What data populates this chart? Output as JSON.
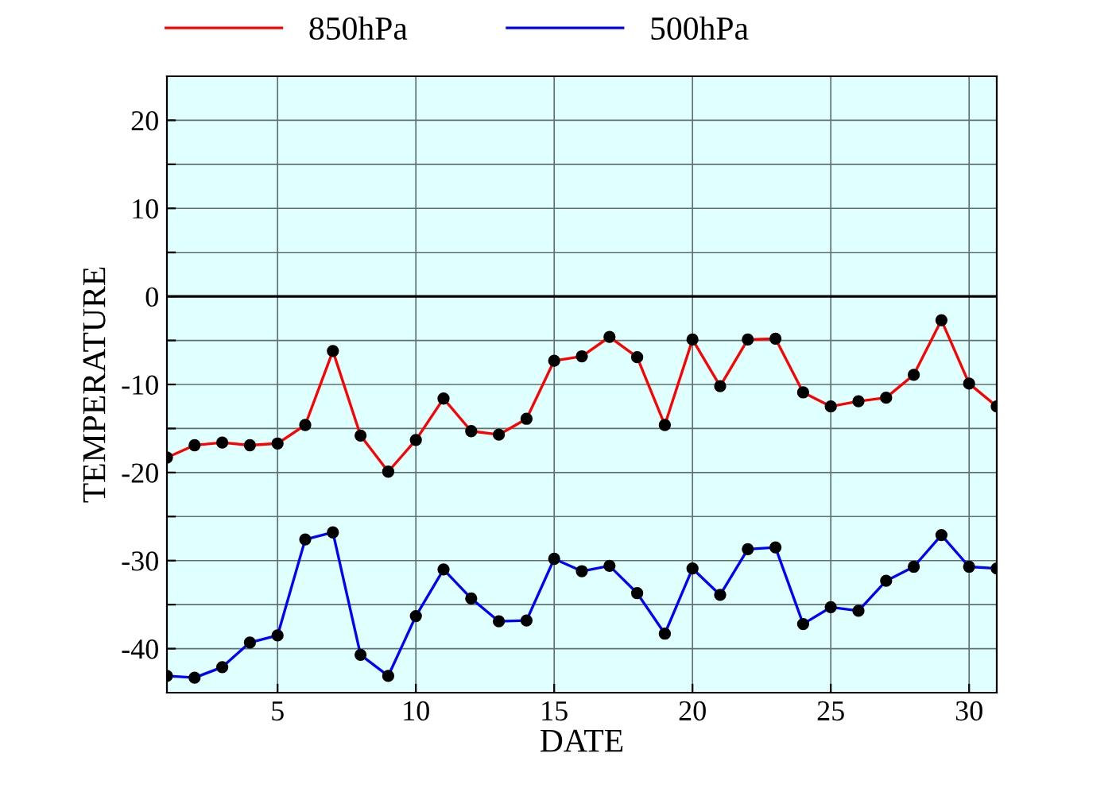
{
  "chart_data": {
    "type": "line",
    "xlabel": "DATE",
    "ylabel": "TEMPERATURE",
    "x": [
      1,
      2,
      3,
      4,
      5,
      6,
      7,
      8,
      9,
      10,
      11,
      12,
      13,
      14,
      15,
      16,
      17,
      18,
      19,
      20,
      21,
      22,
      23,
      24,
      25,
      26,
      27,
      28,
      29,
      30,
      31
    ],
    "series": [
      {
        "name": "850hPa",
        "color": "#ff0000",
        "values": [
          -18.3,
          -16.9,
          -16.6,
          -16.9,
          -16.7,
          -14.6,
          -6.2,
          -15.8,
          -19.9,
          -16.3,
          -11.6,
          -15.3,
          -15.7,
          -13.9,
          -7.3,
          -6.8,
          -4.6,
          -6.9,
          -14.6,
          -4.9,
          -10.2,
          -4.9,
          -4.8,
          -10.9,
          -12.5,
          -11.9,
          -11.5,
          -8.9,
          -2.7,
          -9.9,
          -12.5
        ]
      },
      {
        "name": "500hPa",
        "color": "#0000ff",
        "values": [
          -43.1,
          -43.3,
          -42.1,
          -39.3,
          -38.5,
          -27.6,
          -26.8,
          -40.7,
          -43.1,
          -36.3,
          -31.0,
          -34.3,
          -36.9,
          -36.8,
          -29.8,
          -31.2,
          -30.6,
          -33.7,
          -38.3,
          -30.9,
          -33.9,
          -28.7,
          -28.5,
          -37.2,
          -35.3,
          -35.7,
          -32.3,
          -30.7,
          -27.1,
          -30.7,
          -30.9
        ]
      }
    ],
    "xlim": [
      1,
      31
    ],
    "xticks": [
      5,
      10,
      15,
      20,
      25,
      30
    ],
    "ylim": [
      -45,
      25
    ],
    "yticks": [
      {
        "value": -40,
        "label": "-40"
      },
      {
        "value": -35,
        "label": null
      },
      {
        "value": -30,
        "label": "-30"
      },
      {
        "value": -25,
        "label": null
      },
      {
        "value": -20,
        "label": "-20"
      },
      {
        "value": -15,
        "label": null
      },
      {
        "value": -10,
        "label": "-10"
      },
      {
        "value": -5,
        "label": null
      },
      0,
      {
        "value": 5,
        "label": null
      },
      10,
      {
        "value": 15,
        "label": null
      },
      20
    ],
    "ref_lines": [
      {
        "axis": "y",
        "value": 0,
        "color": "#000000"
      }
    ],
    "grid": true,
    "legend": "top",
    "marker": "circle",
    "line_style": "solid"
  }
}
